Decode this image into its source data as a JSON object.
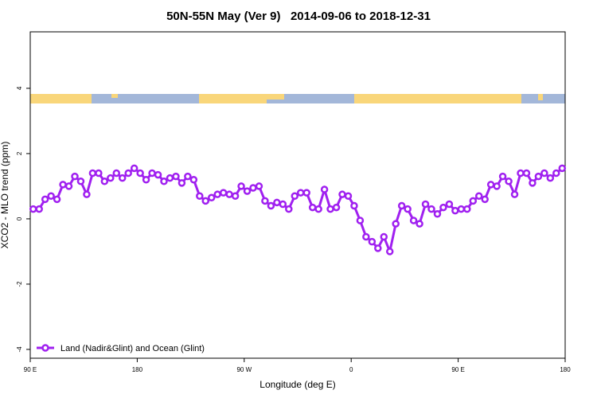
{
  "chart_data": {
    "type": "line",
    "title": "50N-55N May (Ver 9)   2014-09-06 to 2018-12-31",
    "x_label": "Longitude (deg E)",
    "y_label": "XCO2 - MLO trend (ppm)",
    "xlim": [
      90,
      540
    ],
    "xticks": [
      {
        "value": 90,
        "label": "90 E"
      },
      {
        "value": 180,
        "label": "180"
      },
      {
        "value": 270,
        "label": "90 W"
      },
      {
        "value": 360,
        "label": "0"
      },
      {
        "value": 450,
        "label": "90 E"
      },
      {
        "value": 540,
        "label": "180"
      }
    ],
    "ylim": [
      -4.27,
      5.73
    ],
    "yticks": [
      -4,
      -2,
      0,
      2,
      4
    ],
    "legend": "bottom-left",
    "x": [
      92.5,
      97.5,
      102.5,
      107.5,
      112.5,
      117.5,
      122.5,
      127.5,
      132.5,
      137.5,
      142.5,
      147.5,
      152.5,
      157.5,
      162.5,
      167.5,
      172.5,
      177.5,
      182.5,
      187.5,
      192.5,
      197.5,
      202.5,
      207.5,
      212.5,
      217.5,
      222.5,
      227.5,
      232.5,
      237.5,
      242.5,
      247.5,
      252.5,
      257.5,
      262.5,
      267.5,
      272.5,
      277.5,
      282.5,
      287.5,
      292.5,
      297.5,
      302.5,
      307.5,
      312.5,
      317.5,
      322.5,
      327.5,
      332.5,
      337.5,
      342.5,
      347.5,
      352.5,
      357.5,
      362.5,
      367.5,
      372.5,
      377.5,
      382.5,
      387.5,
      392.5,
      397.5,
      402.5,
      407.5,
      412.5,
      417.5,
      422.5,
      427.5,
      432.5,
      437.5,
      442.5,
      447.5,
      452.5,
      457.5,
      462.5,
      467.5,
      472.5,
      477.5,
      482.5,
      487.5,
      492.5,
      497.5,
      502.5,
      507.5,
      512.5,
      517.5,
      522.5,
      527.5,
      532.5,
      537.5
    ],
    "series": [
      {
        "name": "Land (Nadir&Glint) and Ocean (Glint)",
        "color": "#a020f0",
        "values": [
          0.3,
          0.3,
          0.6,
          0.7,
          0.6,
          1.05,
          1.0,
          1.3,
          1.15,
          0.75,
          1.4,
          1.4,
          1.15,
          1.25,
          1.4,
          1.25,
          1.4,
          1.55,
          1.4,
          1.2,
          1.4,
          1.35,
          1.15,
          1.25,
          1.3,
          1.1,
          1.3,
          1.2,
          0.7,
          0.55,
          0.65,
          0.75,
          0.8,
          0.75,
          0.7,
          1.0,
          0.85,
          0.95,
          1.0,
          0.55,
          0.4,
          0.5,
          0.45,
          0.3,
          0.7,
          0.8,
          0.8,
          0.35,
          0.3,
          0.9,
          0.3,
          0.35,
          0.75,
          0.7,
          0.4,
          -0.05,
          -0.55,
          -0.7,
          -0.9,
          -0.55,
          -1.0,
          -0.15,
          0.4,
          0.3,
          -0.05,
          -0.15,
          0.45,
          0.3,
          0.15,
          0.35,
          0.45,
          0.25,
          0.3,
          0.3,
          0.55,
          0.7,
          0.6,
          1.05,
          1.0,
          1.3,
          1.15,
          0.75,
          1.4,
          1.4,
          1.1,
          1.3,
          1.4,
          1.25,
          1.4,
          1.55
        ]
      }
    ]
  }
}
